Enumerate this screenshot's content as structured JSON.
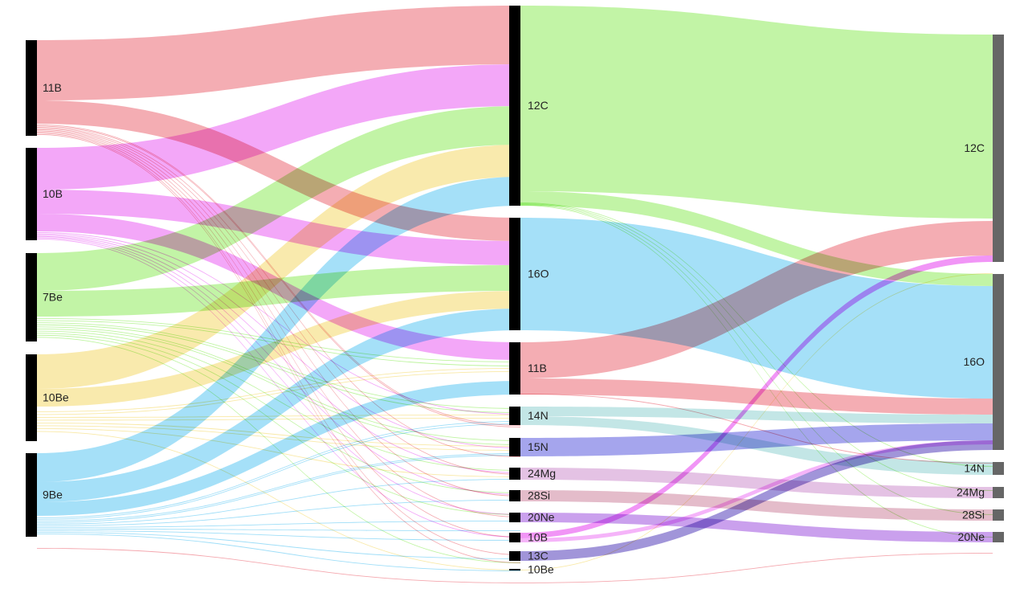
{
  "diagram": {
    "type": "sankey",
    "columns": [
      {
        "nodes": [
          {
            "id": "s11B",
            "label": "11B"
          },
          {
            "id": "s10B",
            "label": "10B"
          },
          {
            "id": "s7Be",
            "label": "7Be"
          },
          {
            "id": "s10Be",
            "label": "10Be"
          },
          {
            "id": "s9Be",
            "label": "9Be"
          }
        ]
      },
      {
        "nodes": [
          {
            "id": "m12C",
            "label": "12C"
          },
          {
            "id": "m16O",
            "label": "16O"
          },
          {
            "id": "m11B",
            "label": "11B"
          },
          {
            "id": "m14N",
            "label": "14N"
          },
          {
            "id": "m15N",
            "label": "15N"
          },
          {
            "id": "m24Mg",
            "label": "24Mg"
          },
          {
            "id": "m28Si",
            "label": "28Si"
          },
          {
            "id": "m20Ne",
            "label": "20Ne"
          },
          {
            "id": "m10B",
            "label": "10B"
          },
          {
            "id": "m13C",
            "label": "13C"
          },
          {
            "id": "m10Be",
            "label": "10Be"
          }
        ]
      },
      {
        "nodes": [
          {
            "id": "t12C",
            "label": "12C"
          },
          {
            "id": "t16O",
            "label": "16O"
          },
          {
            "id": "t14N",
            "label": "14N"
          },
          {
            "id": "t24Mg",
            "label": "24Mg"
          },
          {
            "id": "t28Si",
            "label": "28Si"
          },
          {
            "id": "t20Ne",
            "label": "20Ne"
          }
        ]
      }
    ],
    "colors": {
      "11B": "#f08a93",
      "10B": "#ee82f5",
      "7Be": "#a8f080",
      "10Be": "#f7e18a",
      "9Be": "#7fd3f5",
      "12C": "#a8f080",
      "16O": "#7fd3f5",
      "14N": "#a9dcdc",
      "15N": "#7f7fe6",
      "24Mg": "#d8a8d8",
      "28Si": "#d8a0b4",
      "20Ne": "#b478e6",
      "13C": "#8a7ad0",
      "node_left": "#000000",
      "node_mid": "#000000",
      "node_right": "#666666"
    }
  }
}
